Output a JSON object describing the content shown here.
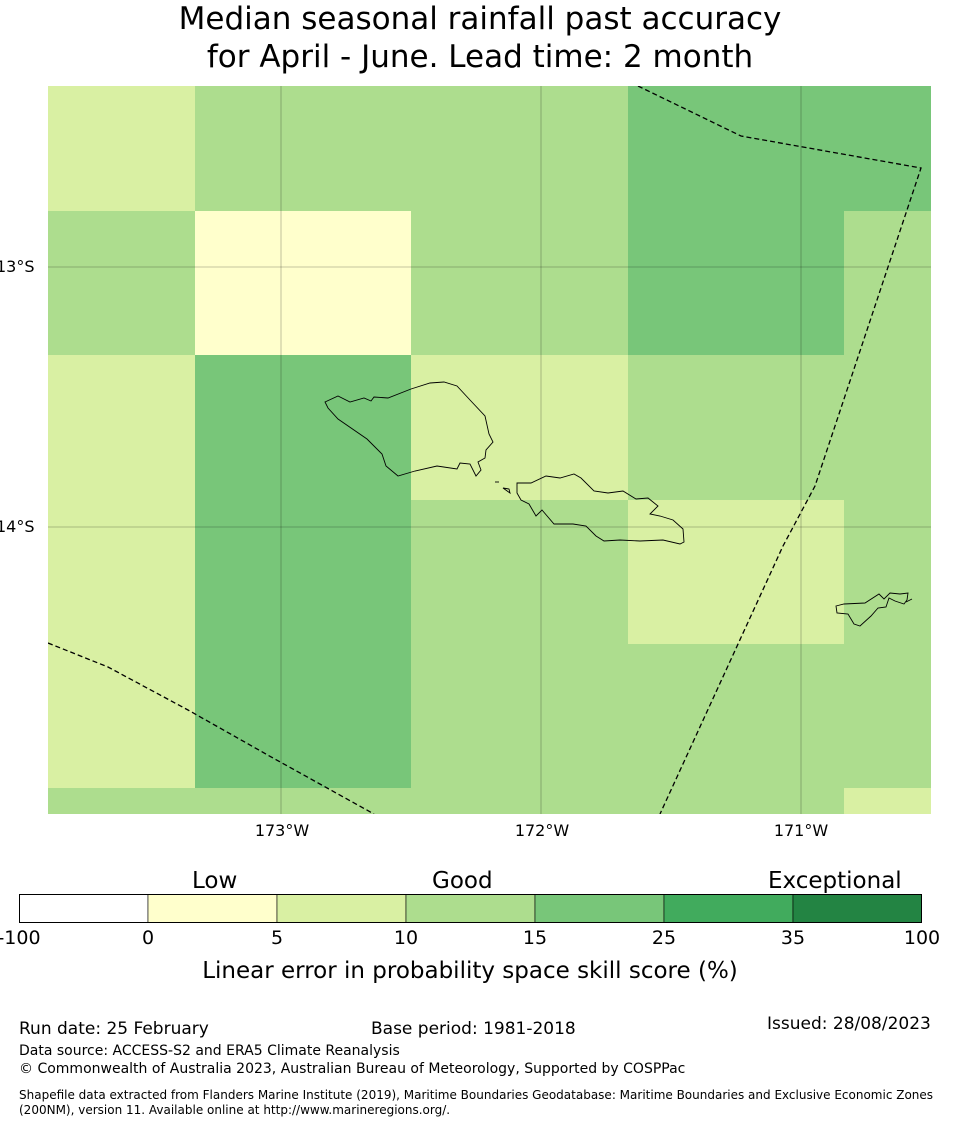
{
  "title": {
    "line1": "Median seasonal rainfall past accuracy",
    "line2": "for April - June. Lead time: 2 month"
  },
  "map": {
    "lat_labels": [
      "13°S",
      "14°S"
    ],
    "lon_labels": [
      "173°W",
      "172°W",
      "171°W"
    ],
    "grid_cells": [
      {
        "row": 0,
        "col": 0,
        "level": "5-10"
      },
      {
        "row": 0,
        "col": 1,
        "level": "10-15"
      },
      {
        "row": 0,
        "col": 2,
        "level": "10-15"
      },
      {
        "row": 0,
        "col": 3,
        "level": "15-25"
      },
      {
        "row": 1,
        "col": 0,
        "level": "10-15"
      },
      {
        "row": 1,
        "col": 1,
        "level": "0-5"
      },
      {
        "row": 1,
        "col": 2,
        "level": "10-15"
      },
      {
        "row": 1,
        "col": 3,
        "level": "15-25"
      },
      {
        "row": 1,
        "col": 4,
        "level": "10-15"
      },
      {
        "row": 2,
        "col": 0,
        "level": "5-10"
      },
      {
        "row": 2,
        "col": 1,
        "level": "15-25"
      },
      {
        "row": 2,
        "col": 2,
        "level": "5-10"
      },
      {
        "row": 2,
        "col": 3,
        "level": "10-15"
      },
      {
        "row": 2,
        "col": 4,
        "level": "10-15"
      },
      {
        "row": 3,
        "col": 0,
        "level": "5-10"
      },
      {
        "row": 3,
        "col": 1,
        "level": "15-25"
      },
      {
        "row": 3,
        "col": 2,
        "level": "10-15"
      },
      {
        "row": 3,
        "col": 3,
        "level": "5-10"
      },
      {
        "row": 3,
        "col": 4,
        "level": "10-15"
      },
      {
        "row": 4,
        "col": 0,
        "level": "5-10"
      },
      {
        "row": 4,
        "col": 1,
        "level": "15-25"
      },
      {
        "row": 4,
        "col": 2,
        "level": "10-15"
      },
      {
        "row": 4,
        "col": 3,
        "level": "10-15"
      },
      {
        "row": 4,
        "col": 4,
        "level": "10-15"
      },
      {
        "row": 5,
        "col": 0,
        "level": "10-15"
      },
      {
        "row": 5,
        "col": 1,
        "level": "10-15"
      },
      {
        "row": 5,
        "col": 2,
        "level": "10-15"
      },
      {
        "row": 5,
        "col": 3,
        "level": "10-15"
      },
      {
        "row": 5,
        "col": 4,
        "level": "5-10"
      }
    ]
  },
  "legend": {
    "categories": [
      "Low",
      "Good",
      "Exceptional"
    ],
    "ticks": [
      "-100",
      "0",
      "5",
      "10",
      "15",
      "25",
      "35",
      "100"
    ],
    "colors": [
      "#ffffff",
      "#ffffcc",
      "#d9f0a3",
      "#addd8e",
      "#78c679",
      "#41ab5d",
      "#238443"
    ],
    "label": "Linear error in probability space skill score (%)"
  },
  "footer": {
    "run_date": "Run date: 25 February",
    "base_period": "Base period: 1981-2018",
    "issued": "Issued: 28/08/2023",
    "data_source": "Data source: ACCESS-S2 and ERA5 Climate Reanalysis",
    "copyright": "© Commonwealth of Australia 2023, Australian Bureau of Meteorology, Supported by COSPPac",
    "shapefile_line1": "Shapefile data extracted from Flanders Marine Institute (2019), Maritime Boundaries Geodatabase: Maritime Boundaries and Exclusive Economic Zones",
    "shapefile_line2": "(200NM), version 11. Available online at http://www.marineregions.org/."
  }
}
